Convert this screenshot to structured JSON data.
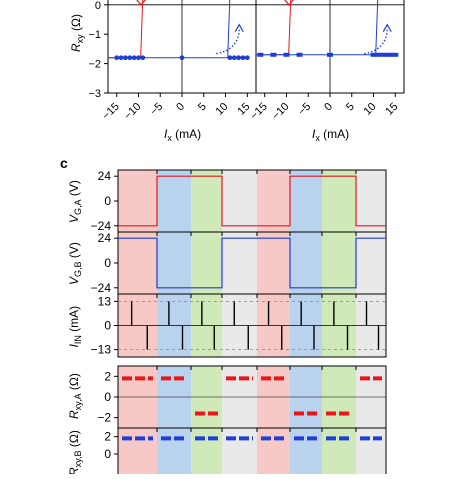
{
  "figure": {
    "panel_label_c": "c",
    "colors": {
      "red": "#e8161b",
      "blue": "#1f3ed6",
      "pink_band": "#f6c9c6",
      "blue_band": "#b9d3ee",
      "green_band": "#cfeab8",
      "gray_band": "#e9e9e9"
    },
    "phase_sequence": [
      "pink",
      "blue",
      "green",
      "gray",
      "pink",
      "blue",
      "green",
      "gray"
    ]
  },
  "chart_data": [
    {
      "type": "scatter",
      "panel": "top-left",
      "xlabel_main": "I",
      "xlabel_sub": "x",
      "xlabel_unit": " (mA)",
      "ylabel_main": "R",
      "ylabel_sub": "xy",
      "ylabel_unit": " (Ω)",
      "xlim": [
        -17,
        17
      ],
      "ylim": [
        -3,
        0.3
      ],
      "yticks": [
        0,
        -1,
        -2,
        -3
      ],
      "xticks": [
        -15,
        -10,
        -5,
        0,
        5,
        10,
        15
      ],
      "series": [
        {
          "name": "",
          "color": "red",
          "x": [
            -17,
            -9.5,
            -9.0
          ],
          "y": [
            -1.8,
            -1.8,
            0.3
          ]
        },
        {
          "name": "",
          "color": "blue",
          "x": [
            -17,
            10.5,
            11.0
          ],
          "y": [
            -1.8,
            -1.8,
            0.3
          ]
        },
        {
          "name": "",
          "color": "blue",
          "x": [
            -15,
            -14,
            -13,
            -12,
            -11,
            -10,
            -9,
            0,
            11,
            12,
            13,
            14,
            15
          ],
          "y": [
            -1.8,
            -1.8,
            -1.8,
            -1.8,
            -1.8,
            -1.8,
            -1.8,
            -1.8,
            -1.8,
            -1.8,
            -1.8,
            -1.8,
            -1.8
          ]
        }
      ]
    },
    {
      "type": "scatter",
      "panel": "top-right",
      "xlabel_main": "I",
      "xlabel_sub": "x",
      "xlabel_unit": " (mA)",
      "xlim": [
        -17,
        17
      ],
      "ylim": [
        -3,
        0.3
      ],
      "xticks": [
        -15,
        -10,
        -5,
        0,
        5,
        10,
        15
      ],
      "series": [
        {
          "name": "",
          "color": "red",
          "x": [
            -17,
            -9.5,
            -9.0
          ],
          "y": [
            -1.7,
            -1.7,
            0.3
          ]
        },
        {
          "name": "",
          "color": "blue",
          "x": [
            -17,
            10.5,
            11.0
          ],
          "y": [
            -1.7,
            -1.7,
            0.3
          ]
        },
        {
          "name": "",
          "color": "blue",
          "x": [
            -16,
            -13,
            -10,
            -7,
            0,
            10,
            11,
            12,
            13,
            14,
            15
          ],
          "y": [
            -1.7,
            -1.7,
            -1.7,
            -1.7,
            -1.7,
            -1.7,
            -1.7,
            -1.7,
            -1.7,
            -1.7,
            -1.7
          ]
        }
      ]
    },
    {
      "type": "line",
      "panel": "c-VGA",
      "ylabel_main": "V",
      "ylabel_sub": "G,A",
      "ylabel_unit": " (V)",
      "yticks": [
        24,
        0,
        -24
      ],
      "ylim": [
        -30,
        30
      ],
      "color": "red",
      "levels_per_phase": [
        -24,
        24,
        24,
        -24,
        -24,
        24,
        24,
        -24
      ]
    },
    {
      "type": "line",
      "panel": "c-VGB",
      "ylabel_main": "V",
      "ylabel_sub": "G,B",
      "ylabel_unit": " (V)",
      "yticks": [
        24,
        0,
        -24
      ],
      "ylim": [
        -30,
        30
      ],
      "color": "blue",
      "levels_per_phase": [
        24,
        -24,
        -24,
        24,
        24,
        -24,
        -24,
        24
      ]
    },
    {
      "type": "line",
      "panel": "c-IIN",
      "ylabel_main": "I",
      "ylabel_sub": "IN",
      "ylabel_unit": " (mA)",
      "yticks": [
        13,
        0,
        -13
      ],
      "ylim": [
        -17,
        17
      ],
      "color": "black",
      "pulse_amplitude": 13
    },
    {
      "type": "scatter",
      "panel": "c-RxyA",
      "ylabel_main": "R",
      "ylabel_sub": "xy,A",
      "ylabel_unit": " (Ω)",
      "yticks": [
        2,
        0,
        -2
      ],
      "ylim": [
        -3,
        3
      ],
      "color": "red",
      "levels_per_phase": [
        1.8,
        1.8,
        -1.6,
        1.8,
        1.8,
        -1.6,
        -1.6,
        1.8
      ]
    },
    {
      "type": "scatter",
      "panel": "c-RxyB",
      "ylabel_main": "R",
      "ylabel_sub": "xy,B",
      "ylabel_unit": " (Ω)",
      "yticks": [
        2,
        0
      ],
      "ylim": [
        -3,
        3
      ],
      "color": "blue",
      "levels_per_phase": [
        1.8,
        1.8,
        1.8,
        1.8,
        1.8,
        1.8,
        1.8,
        1.8
      ]
    }
  ]
}
